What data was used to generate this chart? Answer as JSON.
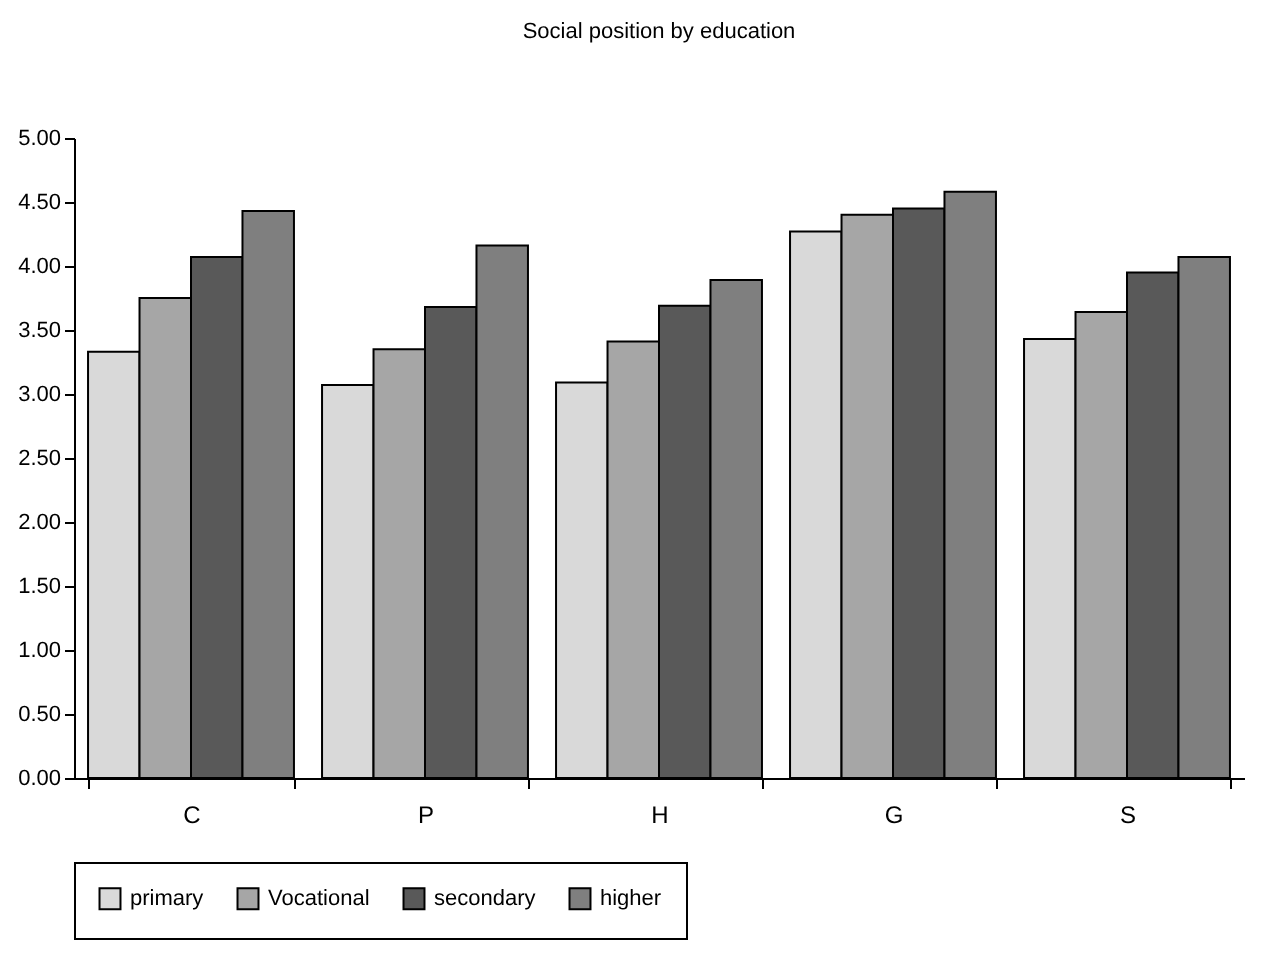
{
  "chart_data": {
    "type": "bar",
    "title": "Social position by education",
    "categories": [
      "C",
      "P",
      "H",
      "G",
      "S"
    ],
    "series": [
      {
        "name": "primary",
        "color": "#d9d9d9",
        "values": [
          3.33,
          3.07,
          3.09,
          4.27,
          3.43
        ]
      },
      {
        "name": "Vocational",
        "color": "#a6a6a6",
        "values": [
          3.75,
          3.35,
          3.41,
          4.4,
          3.64
        ]
      },
      {
        "name": "secondary",
        "color": "#595959",
        "values": [
          4.07,
          3.68,
          3.69,
          4.45,
          3.95
        ]
      },
      {
        "name": "higher",
        "color": "#7f7f7f",
        "values": [
          4.43,
          4.16,
          3.89,
          4.58,
          4.07
        ]
      }
    ],
    "ylim": [
      0,
      5
    ],
    "yticks": [
      {
        "value": 0,
        "label": "0.00"
      },
      {
        "value": 0.5,
        "label": "0.50"
      },
      {
        "value": 1,
        "label": "1.00"
      },
      {
        "value": 1.5,
        "label": "1.50"
      },
      {
        "value": 2,
        "label": "2.00"
      },
      {
        "value": 2.5,
        "label": "2.50"
      },
      {
        "value": 3,
        "label": "3.00"
      },
      {
        "value": 3.5,
        "label": "3.50"
      },
      {
        "value": 4,
        "label": "4.00"
      },
      {
        "value": 4.5,
        "label": "4.50"
      },
      {
        "value": 5,
        "label": "5.00"
      }
    ],
    "grid": false,
    "legend": "bottom"
  }
}
